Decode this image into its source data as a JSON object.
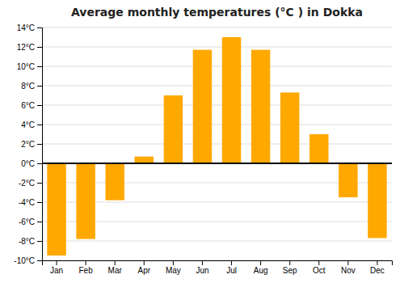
{
  "chart_data": {
    "type": "bar",
    "title": "Average monthly temperatures (°C ) in Dokka",
    "categories": [
      "Jan",
      "Feb",
      "Mar",
      "Apr",
      "May",
      "Jun",
      "Jul",
      "Aug",
      "Sep",
      "Oct",
      "Nov",
      "Dec"
    ],
    "values": [
      -9.5,
      -7.8,
      -3.8,
      0.7,
      7.0,
      11.7,
      13.0,
      11.7,
      7.3,
      3.0,
      -3.5,
      -7.7
    ],
    "color": "#FFA800",
    "ylim": [
      -10,
      14
    ],
    "yticks": [
      {
        "value": -10,
        "label": "-10°C"
      },
      {
        "value": -8,
        "label": "-8°C"
      },
      {
        "value": -6,
        "label": "-6°C"
      },
      {
        "value": -4,
        "label": "-4°C"
      },
      {
        "value": -2,
        "label": "-2°C"
      },
      {
        "value": 0,
        "label": "0°C"
      },
      {
        "value": 2,
        "label": "2°C"
      },
      {
        "value": 4,
        "label": "4°C"
      },
      {
        "value": 6,
        "label": "6°C"
      },
      {
        "value": 8,
        "label": "8°C"
      },
      {
        "value": 10,
        "label": "10°C"
      },
      {
        "value": 12,
        "label": "12°C"
      },
      {
        "value": 14,
        "label": "14°C"
      }
    ],
    "grid": true
  }
}
